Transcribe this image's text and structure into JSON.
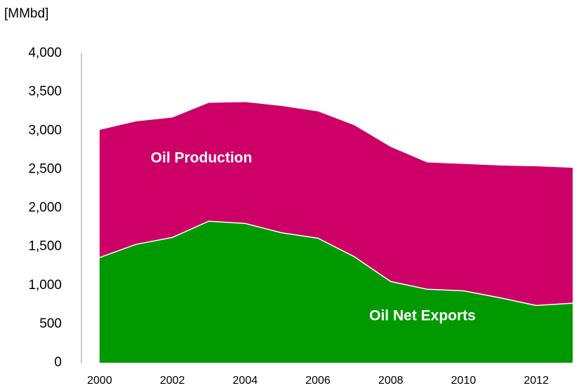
{
  "chart_data": {
    "type": "area",
    "y_label": "[MMbd]",
    "x": [
      2000,
      2001,
      2002,
      2003,
      2004,
      2005,
      2006,
      2007,
      2008,
      2009,
      2010,
      2011,
      2012,
      2013
    ],
    "series": [
      {
        "name": "Oil Production",
        "color": "#cc0066",
        "values": [
          3010,
          3120,
          3170,
          3360,
          3370,
          3320,
          3250,
          3070,
          2790,
          2590,
          2570,
          2550,
          2540,
          2520
        ]
      },
      {
        "name": "Oil Net Exports",
        "color": "#009900",
        "values": [
          1360,
          1530,
          1620,
          1830,
          1800,
          1680,
          1610,
          1370,
          1050,
          950,
          930,
          840,
          740,
          770
        ]
      }
    ],
    "xlim": [
      1999.5,
      2013
    ],
    "xticks": [
      2000,
      2002,
      2004,
      2006,
      2008,
      2010,
      2012
    ],
    "ylim": [
      0,
      4000
    ],
    "yticks": [
      0,
      500,
      {
        "value": 1000,
        "label": "1,000"
      },
      {
        "value": 1500,
        "label": "1,500"
      },
      {
        "value": 2000,
        "label": "2,000"
      },
      {
        "value": 2500,
        "label": "2,500"
      },
      {
        "value": 3000,
        "label": "3,000"
      },
      {
        "value": 3500,
        "label": "3,500"
      },
      {
        "value": 4000,
        "label": "4,000"
      }
    ],
    "grid": false
  }
}
